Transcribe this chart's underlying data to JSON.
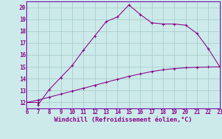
{
  "xlabel": "Windchill (Refroidissement éolien,°C)",
  "background_color": "#cceaea",
  "grid_color": "#aacccc",
  "line_color": "#880088",
  "x_curve": [
    6,
    7,
    7,
    8,
    9,
    10,
    11,
    12,
    13,
    14,
    15,
    16,
    17,
    18,
    19,
    20,
    21,
    22,
    23
  ],
  "y_curve": [
    12.0,
    12.0,
    11.8,
    13.1,
    14.1,
    15.1,
    16.4,
    17.6,
    18.8,
    19.2,
    20.2,
    19.4,
    18.7,
    18.6,
    18.6,
    18.5,
    17.8,
    16.5,
    15.0
  ],
  "x_line": [
    6,
    7,
    8,
    9,
    10,
    11,
    12,
    13,
    14,
    15,
    16,
    17,
    18,
    19,
    20,
    21,
    22,
    23
  ],
  "y_line": [
    12.0,
    12.2,
    12.45,
    12.7,
    12.95,
    13.2,
    13.45,
    13.7,
    13.95,
    14.2,
    14.4,
    14.6,
    14.75,
    14.85,
    14.92,
    14.96,
    14.98,
    15.0
  ],
  "xlim": [
    6,
    23
  ],
  "ylim": [
    11.5,
    20.5
  ],
  "xticks": [
    6,
    7,
    8,
    9,
    10,
    11,
    12,
    13,
    14,
    15,
    16,
    17,
    18,
    19,
    20,
    21,
    22,
    23
  ],
  "yticks": [
    12,
    13,
    14,
    15,
    16,
    17,
    18,
    19,
    20
  ],
  "tick_fontsize": 5.5,
  "xlabel_fontsize": 6.5,
  "spine_color": "#7700aa"
}
